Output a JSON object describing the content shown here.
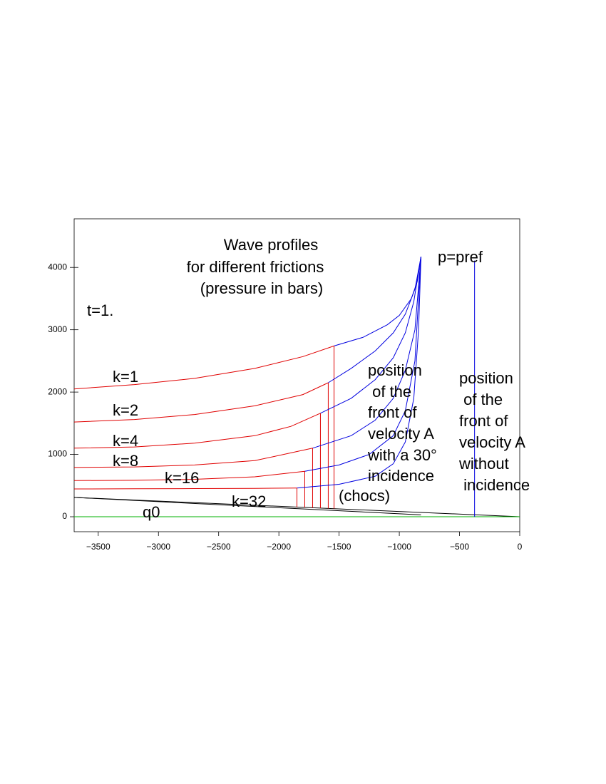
{
  "chart_data": {
    "type": "line",
    "title": [
      "Wave profiles",
      "for different frictions",
      "(pressure in bars)"
    ],
    "time_label": "t=1.",
    "pref_label": "p=pref",
    "annotation_with_incidence": [
      "position",
      " of the",
      "front of",
      "velocity A",
      "with a 30°",
      "incidence",
      "(chocs)"
    ],
    "annotation_without_incidence": [
      "position",
      " of the",
      "front of",
      "velocity A",
      "without",
      " incidence"
    ],
    "baseline_label": "q0",
    "xlim": [
      -3700,
      0
    ],
    "ylim": [
      -240,
      4780
    ],
    "xticks": [
      {
        "value": -3500,
        "label": "−3500"
      },
      {
        "value": -3000,
        "label": "−3000"
      },
      {
        "value": -2500,
        "label": "−2500"
      },
      {
        "value": -2000,
        "label": "−2000"
      },
      {
        "value": -1500,
        "label": "−1500"
      },
      {
        "value": -1000,
        "label": "−1000"
      },
      {
        "value": -500,
        "label": "−500"
      },
      0
    ],
    "yticks": [
      0,
      1000,
      2000,
      3000,
      4000
    ],
    "color": "#e00000",
    "front_color": "#0000e0",
    "series": [
      {
        "name": "k=1",
        "x": [
          -3700,
          -3200,
          -2700,
          -2200,
          -1800,
          -1542
        ],
        "values": [
          2050,
          2120,
          2220,
          2380,
          2570,
          2740
        ],
        "x_after": [
          -1542,
          -1300,
          -1100,
          -1000,
          -900,
          -850,
          -820
        ],
        "values_after": [
          2740,
          2880,
          3080,
          3230,
          3500,
          3780,
          4170
        ]
      },
      {
        "name": "k=2",
        "x": [
          -3700,
          -3200,
          -2700,
          -2200,
          -1800,
          -1590
        ],
        "values": [
          1520,
          1560,
          1640,
          1780,
          1960,
          2150
        ],
        "x_after": [
          -1590,
          -1400,
          -1200,
          -1050,
          -950,
          -870,
          -820
        ],
        "values_after": [
          2150,
          2380,
          2660,
          2950,
          3250,
          3650,
          4170
        ]
      },
      {
        "name": "k=4",
        "x": [
          -3700,
          -3200,
          -2700,
          -2200,
          -1900,
          -1655
        ],
        "values": [
          1100,
          1120,
          1180,
          1300,
          1450,
          1660
        ],
        "x_after": [
          -1655,
          -1400,
          -1200,
          -1050,
          -950,
          -880,
          -820
        ],
        "values_after": [
          1660,
          1900,
          2200,
          2550,
          2950,
          3450,
          4170
        ]
      },
      {
        "name": "k=8",
        "x": [
          -3700,
          -3200,
          -2700,
          -2200,
          -1720
        ],
        "values": [
          790,
          800,
          830,
          900,
          1100
        ],
        "x_after": [
          -1720,
          -1400,
          -1200,
          -1050,
          -950,
          -870,
          -820
        ],
        "values_after": [
          1100,
          1300,
          1550,
          1900,
          2350,
          3000,
          4170
        ]
      },
      {
        "name": "k=16",
        "x": [
          -3700,
          -3200,
          -2700,
          -2200,
          -1785
        ],
        "values": [
          580,
          585,
          600,
          640,
          730
        ],
        "x_after": [
          -1785,
          -1500,
          -1250,
          -1050,
          -950,
          -870,
          -820
        ],
        "values_after": [
          730,
          830,
          1000,
          1300,
          1700,
          2500,
          4170
        ]
      },
      {
        "name": "k=32",
        "x": [
          -3700,
          -3200,
          -2700,
          -2200,
          -1850
        ],
        "values": [
          446,
          448,
          452,
          455,
          460
        ],
        "x_after": [
          -1850,
          -1500,
          -1200,
          -1050,
          -950,
          -880,
          -840,
          -820
        ],
        "values_after": [
          460,
          520,
          650,
          850,
          1200,
          1900,
          3000,
          4170
        ]
      }
    ],
    "lines": [
      {
        "color": "#000000",
        "x": [
          -3700,
          -820
        ],
        "values": [
          310,
          30
        ]
      },
      {
        "color": "#000000",
        "x": [
          -3700,
          0
        ],
        "values": [
          310,
          0
        ]
      },
      {
        "color": "#00b000",
        "x": [
          -3700,
          0
        ],
        "values": [
          0,
          0
        ]
      }
    ],
    "pref_line": {
      "color": "#0000e0",
      "x": -375,
      "values": [
        0,
        4110
      ]
    }
  }
}
